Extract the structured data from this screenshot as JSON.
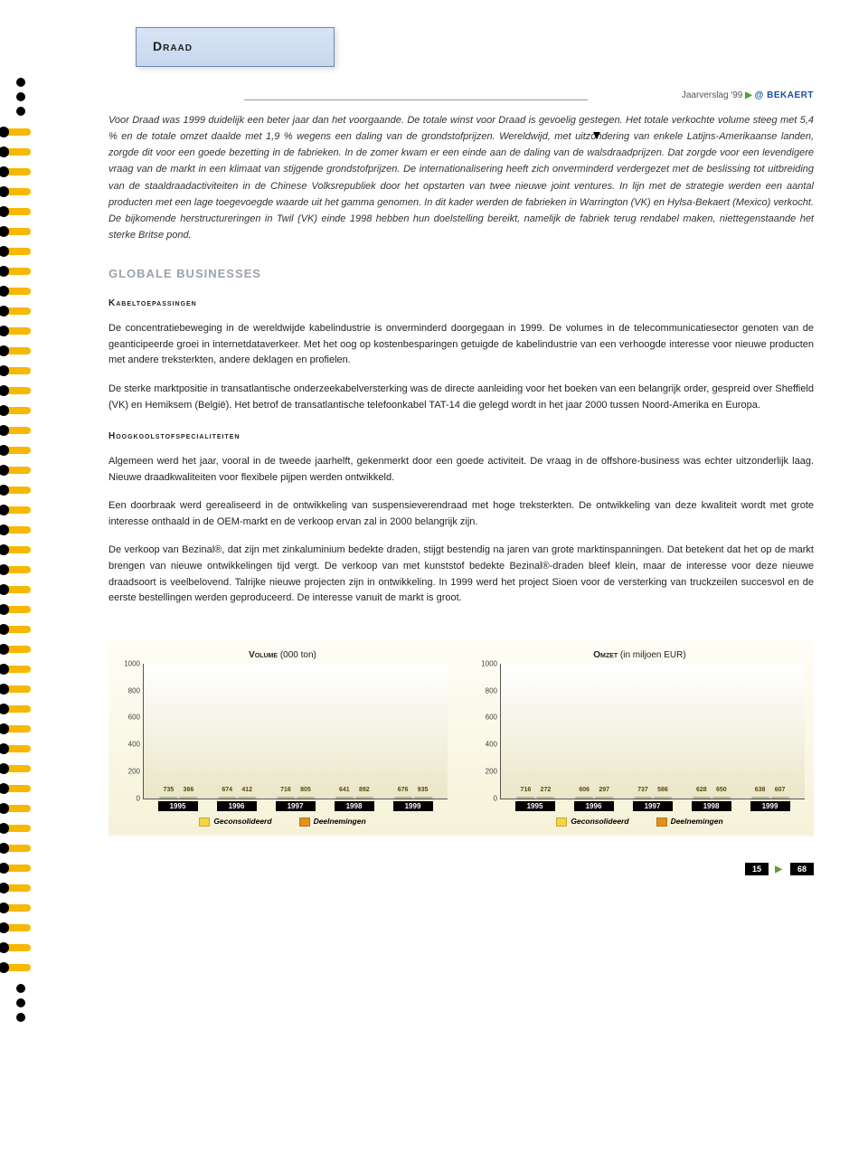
{
  "header": {
    "title": "Draad",
    "report_label": "Jaarverslag '99",
    "brand_symbol": "@",
    "brand": "BEKAERT"
  },
  "intro": "Voor Draad was 1999 duidelijk een beter jaar dan het voorgaande. De totale winst voor Draad is gevoelig gestegen. Het totale verkochte volume steeg met 5,4 % en de totale omzet daalde met 1,9 % wegens een daling van de grondstofprijzen. Wereldwijd, met uitzondering van enkele Latijns-Amerikaanse landen, zorgde dit voor een goede bezetting in de fabrieken. In de zomer kwam er een einde aan de daling van de walsdraadprijzen. Dat zorgde voor een levendigere vraag van de markt in een klimaat van stijgende grondstofprijzen. De internationalisering heeft zich onverminderd verdergezet met de beslissing tot uitbreiding van de staaldraadactiviteiten in de Chinese Volksrepubliek door het opstarten van twee nieuwe joint ventures. In lijn met de strategie werden een aantal producten met een lage toegevoegde waarde uit het gamma genomen. In dit kader werden de fabrieken in Warrington (VK) en Hylsa-Bekaert (Mexico) verkocht. De bijkomende herstructureringen in Twil (VK) einde 1998 hebben hun doelstelling bereikt, namelijk de fabriek terug rendabel maken, niettegenstaande het sterke Britse pond.",
  "section_heading": "GLOBALE BUSINESSES",
  "sections": {
    "kabel": {
      "heading": "Kabeltoepassingen",
      "p1": "De concentratiebeweging in de wereldwijde kabelindustrie is onverminderd doorgegaan in 1999. De volumes in de telecommunicatiesector genoten van de geanticipeerde groei in internetdataverkeer. Met het oog op kostenbesparingen getuigde de kabelindustrie van een verhoogde interesse voor nieuwe producten met andere treksterkten, andere deklagen en profielen.",
      "p2": "De sterke marktpositie in transatlantische onderzeekabelversterking was de directe aanleiding voor het boeken van een belangrijk order, gespreid over Sheffield (VK) en Hemiksem (België). Het betrof de transatlantische telefoonkabel TAT-14 die gelegd wordt in het jaar 2000 tussen Noord-Amerika en Europa."
    },
    "hoog": {
      "heading": "Hoogkoolstofspecialiteiten",
      "p1": "Algemeen werd het jaar, vooral in de tweede jaarhelft, gekenmerkt door een goede activiteit. De vraag in de offshore-business was echter uitzonderlijk laag. Nieuwe draadkwaliteiten voor flexibele pijpen werden ontwikkeld.",
      "p2": "Een doorbraak werd gerealiseerd in de ontwikkeling van suspensieverendraad met hoge treksterkten. De ontwikkeling van deze kwaliteit wordt met grote interesse onthaald in de OEM-markt en de verkoop ervan zal in 2000 belangrijk zijn.",
      "p3": "De verkoop van Bezinal®, dat zijn met zinkaluminium bedekte draden, stijgt bestendig na jaren van grote marktinspanningen. Dat betekent dat het op de markt brengen van nieuwe ontwikkelingen tijd vergt. De verkoop van met kunststof bedekte Bezinal®-draden bleef klein, maar de interesse voor deze nieuwe draadsoort is veelbelovend. Talrijke nieuwe projecten zijn in ontwikkeling. In 1999 werd het project Sioen voor de versterking van truckzeilen succesvol en de eerste bestellingen werden geproduceerd. De interesse vanuit de markt is groot."
    }
  },
  "charts": {
    "ymax": 1000,
    "yticks": [
      0,
      200,
      400,
      600,
      800,
      1000
    ],
    "categories": [
      "1995",
      "1996",
      "1997",
      "1998",
      "1999"
    ],
    "legend": {
      "a": "Geconsolideerd",
      "b": "Deelnemingen"
    },
    "colors": {
      "consolidated": "#f4d441",
      "participations": "#e5901a",
      "background_top": "#fffef6",
      "background_bottom": "#f5f2d8",
      "axis": "#555555",
      "xlabel_bg": "#000000",
      "xlabel_fg": "#ffffff"
    },
    "volume": {
      "title": "Volume",
      "unit": "(000 ton)",
      "series": {
        "consolidated": [
          735,
          674,
          716,
          641,
          676
        ],
        "participations": [
          366,
          412,
          805,
          892,
          935
        ]
      }
    },
    "omzet": {
      "title": "Omzet",
      "unit": "(in miljoen EUR)",
      "series": {
        "consolidated": [
          716,
          606,
          737,
          628,
          638
        ],
        "participations": [
          272,
          297,
          586,
          650,
          607
        ]
      }
    }
  },
  "footer": {
    "page": "15",
    "total": "68"
  }
}
